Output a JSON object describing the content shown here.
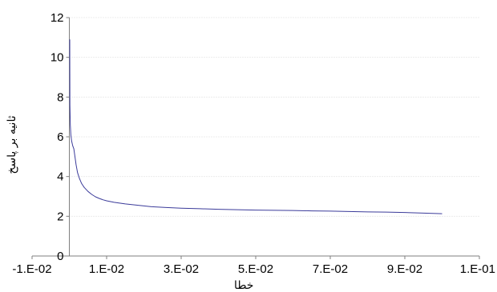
{
  "chart_data": {
    "type": "line",
    "xlabel": "خطا",
    "ylabel": "ثانیه بر پاسخ",
    "xlim": [
      -0.01,
      0.11
    ],
    "ylim": [
      0,
      12
    ],
    "x_ticks": [
      -0.01,
      0.01,
      0.03,
      0.05,
      0.07,
      0.09,
      0.11
    ],
    "x_tick_labels": [
      "-1.E-02",
      "1.E-02",
      "3.E-02",
      "5.E-02",
      "7.E-02",
      "9.E-02",
      "1.E-01"
    ],
    "y_ticks": [
      0,
      2,
      4,
      6,
      8,
      10,
      12
    ],
    "y_tick_labels": [
      "0",
      "2",
      "4",
      "6",
      "8",
      "10",
      "12"
    ],
    "grid": {
      "horizontal": true,
      "vertical": false
    },
    "legend": "none",
    "series": [
      {
        "color": "#3b3b9a",
        "x": [
          0.0001,
          0.00012,
          0.00016,
          0.00025,
          0.0004,
          0.0006,
          0.0009,
          0.0012,
          0.0015,
          0.0018,
          0.0022,
          0.0027,
          0.0033,
          0.004,
          0.005,
          0.006,
          0.007,
          0.008,
          0.009,
          0.01,
          0.012,
          0.015,
          0.018,
          0.022,
          0.026,
          0.03,
          0.035,
          0.04,
          0.045,
          0.05,
          0.055,
          0.06,
          0.065,
          0.07,
          0.075,
          0.08,
          0.085,
          0.09,
          0.095,
          0.1
        ],
        "y": [
          10.9,
          9.2,
          7.6,
          6.6,
          6.1,
          5.8,
          5.55,
          5.4,
          5.0,
          4.6,
          4.2,
          3.9,
          3.65,
          3.45,
          3.25,
          3.1,
          2.98,
          2.9,
          2.83,
          2.78,
          2.7,
          2.62,
          2.56,
          2.48,
          2.44,
          2.41,
          2.38,
          2.35,
          2.33,
          2.31,
          2.3,
          2.29,
          2.27,
          2.26,
          2.24,
          2.22,
          2.21,
          2.19,
          2.16,
          2.13
        ]
      }
    ],
    "colors": {
      "line": "#3b3b9a",
      "axis": "#7f7f7f",
      "grid": "#d9d9d9",
      "text": "#000000"
    }
  }
}
